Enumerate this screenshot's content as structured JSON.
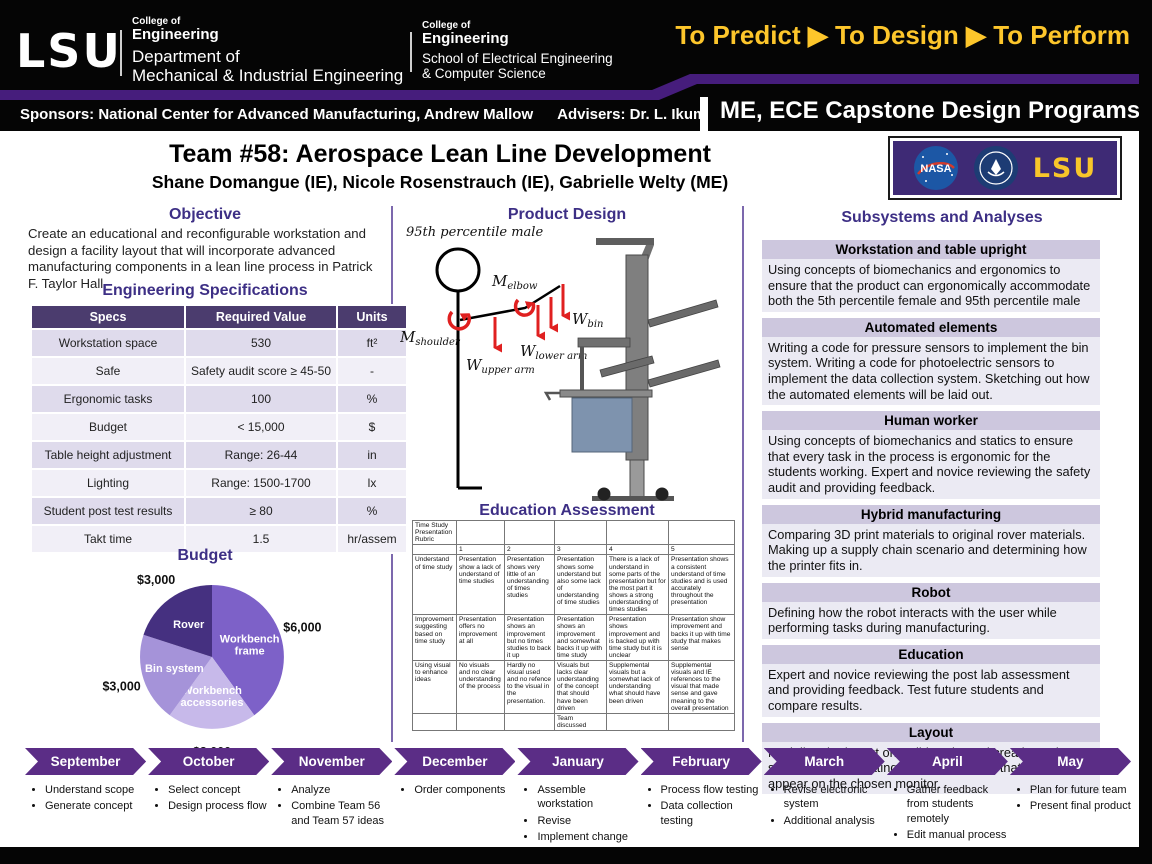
{
  "header": {
    "logo_text": "LSU",
    "dept1": [
      "College of",
      "Engineering",
      "Department of",
      "Mechanical & Industrial Engineering"
    ],
    "dept2": [
      "College of",
      "Engineering",
      "School of Electrical Engineering",
      "& Computer Science"
    ],
    "motto": "To Predict ▶ To Design ▶ To Perform",
    "program": "ME, ECE Capstone Design Programs",
    "sponsors": "Sponsors: National Center for Advanced Manufacturing, Andrew Mallow",
    "advisers": "Advisers: Dr. L. Ikuma"
  },
  "title_block": {
    "team": "Team #58: Aerospace Lean Line Development",
    "members": "Shane Domangue (IE), Nicole Rosenstrauch (IE), Gabrielle Welty (ME)"
  },
  "logo_strip": {
    "nasa_label": "NASA",
    "lsu_label": "LSU"
  },
  "left": {
    "objective_heading": "Objective",
    "objective_text": "Create an educational and reconfigurable workstation and design a facility layout that will incorporate advanced manufacturing components in a lean line process in Patrick F. Taylor Hall.",
    "specs_heading": "Engineering Specifications",
    "specs_columns": [
      "Specs",
      "Required Value",
      "Units"
    ],
    "specs_rows": [
      [
        "Workstation space",
        "530",
        "ft²"
      ],
      [
        "Safe",
        "Safety audit score ≥ 45-50",
        "-"
      ],
      [
        "Ergonomic tasks",
        "100",
        "%"
      ],
      [
        "Budget",
        "< 15,000",
        "$"
      ],
      [
        "Table height adjustment",
        "Range: 26-44",
        "in"
      ],
      [
        "Lighting",
        "Range: 1500-1700",
        "lx"
      ],
      [
        "Student post test results",
        "≥ 80",
        "%"
      ],
      [
        "Takt time",
        "1.5",
        "hr/assem"
      ]
    ]
  },
  "chart_data": {
    "type": "pie",
    "title": "Budget",
    "labels": [
      "Workbench frame",
      "Workbench accessories",
      "Bin system",
      "Rover"
    ],
    "values": [
      6000,
      3000,
      3000,
      3000
    ],
    "value_labels": [
      "$6,000",
      "$3,000",
      "$3,000",
      "$3,000"
    ],
    "colors": [
      "#7D61C8",
      "#C7B9EA",
      "#A593D9",
      "#453080"
    ],
    "start_angle_deg": 0,
    "direction": "clockwise",
    "legend_position": "none"
  },
  "middle": {
    "product_heading": "Product Design",
    "figure": {
      "percentile": "95th percentile male",
      "m_shoulder": [
        "M",
        "shoulder"
      ],
      "m_elbow": [
        "M",
        "elbow"
      ],
      "w_upper": [
        "W",
        "upper arm"
      ],
      "w_lower": [
        "W",
        "lower arm"
      ],
      "w_bin": [
        "W",
        "bin"
      ]
    },
    "education_heading": "Education Assessment",
    "rubric_rows": [
      [
        "Time Study Presentation Rubric",
        "",
        "",
        "",
        "",
        ""
      ],
      [
        "",
        "1",
        "2",
        "3",
        "4",
        "5"
      ],
      [
        "Understand of time study",
        "Presentation show a lack of understand of time studies",
        "Presentation shows very little of an understanding of times studies",
        "Presentation shows some understand but also some lack of understanding of time studies",
        "There is a lack of understand in some parts of the presentation but for the most part it shows a strong understanding of times studies",
        "Presentation shows a consistent understand of time studies and is used accurately throughout the presentation"
      ],
      [
        "Improvement suggesting based on time study",
        "Presentation offers no improvement at all",
        "Presentation shows an improvement but no times studies to back it up",
        "Presentation shows an improvement and somewhat backs it up with time study",
        "Presentation shows improvement and is backed up with time study but it is unclear",
        "Presentation show improvement and backs it up with time study that makes sense"
      ],
      [
        "Using visual to enhance ideas",
        "No visuals and no clear understanding of the process",
        "Hardly no visual used and no refence to the visual in the presentation.",
        "Visuals but lacks clear understanding of the concept that should have been driven",
        "Supplemental visuals but a somewhat lack of understanding what should have been driven",
        "Supplemental visuals and IE references to the visual that made sense and gave meaning to the overall presentation"
      ],
      [
        "",
        "",
        "",
        "Team discussed",
        "",
        ""
      ]
    ]
  },
  "right": {
    "heading": "Subsystems and Analyses",
    "items": [
      {
        "title": "Workstation and table upright",
        "body": "Using concepts of biomechanics and ergonomics to ensure that the product can ergonomically accommodate both the 5th percentile female and 95th percentile male"
      },
      {
        "title": "Automated elements",
        "body": "Writing a code for pressure sensors to implement the bin system. Writing a code for photoelectric sensors to implement the data collection system. Sketching out how the automated elements will be laid out."
      },
      {
        "title": "Human worker",
        "body": "Using concepts of biomechanics and statics to ensure that every task in the process is ergonomic for the students working. Expert and novice reviewing the safety audit and providing feedback."
      },
      {
        "title": "Hybrid manufacturing",
        "body": "Comparing 3D print materials to original rover materials. Making up a supply chain scenario and determining how the printer fits in."
      },
      {
        "title": "Robot",
        "body": "Defining how the robot interacts with the user while performing tasks during manufacturing."
      },
      {
        "title": "Education",
        "body": "Expert and novice reviewing the post lab assessment and providing feedback. Test future students and compare results."
      },
      {
        "title": "Layout",
        "body": "Modeling the layout on SolidWorks and creating value stream maps. Creating work instructions that would appear on the chosen monitor."
      }
    ]
  },
  "timeline": {
    "months": [
      {
        "name": "September",
        "bullets": [
          "Understand scope",
          "Generate concept"
        ]
      },
      {
        "name": "October",
        "bullets": [
          "Select concept",
          "Design process flow"
        ]
      },
      {
        "name": "November",
        "bullets": [
          "Analyze",
          "Combine Team 56 and Team 57 ideas"
        ]
      },
      {
        "name": "December",
        "bullets": [
          "Order components"
        ]
      },
      {
        "name": "January",
        "bullets": [
          "Assemble workstation",
          "Revise",
          "Implement change"
        ]
      },
      {
        "name": "February",
        "bullets": [
          "Process flow testing",
          "Data collection testing"
        ]
      },
      {
        "name": "March",
        "bullets": [
          "Revise electronic system",
          "Additional analysis"
        ]
      },
      {
        "name": "April",
        "bullets": [
          "Gather feedback from students remotely",
          "Edit manual process"
        ]
      },
      {
        "name": "May",
        "bullets": [
          "Plan for future team",
          "Present final product"
        ]
      }
    ]
  },
  "colors": {
    "lsu_purple": "#461D7C",
    "lsu_gold": "#FDC62B",
    "heading_purple": "#3D2F85",
    "timeline_arrow": "#5B2D86",
    "spec_header_bg": "#4B3C6E",
    "red_annotation": "#E02020"
  }
}
